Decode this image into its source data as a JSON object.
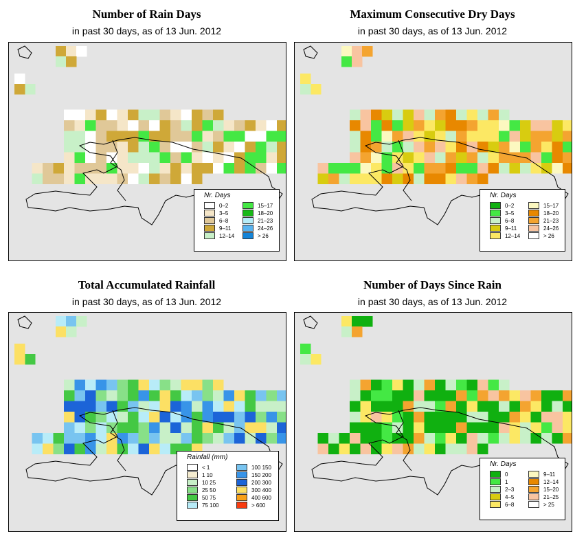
{
  "panels": [
    {
      "id": "rain-days",
      "title": "Number of Rain Days",
      "subtitle": "in past 30 days, as of  13 Jun. 2012",
      "legend_title": "Nr. Days",
      "legend": [
        {
          "label": "0–2",
          "color": "#ffffff"
        },
        {
          "label": "3–5",
          "color": "#f5e6c8"
        },
        {
          "label": "6–8",
          "color": "#e0c898"
        },
        {
          "label": "9–11",
          "color": "#cfa838"
        },
        {
          "label": "12–14",
          "color": "#c8f0c8"
        },
        {
          "label": "15–17",
          "color": "#44e844"
        },
        {
          "label": "18–20",
          "color": "#18b818"
        },
        {
          "label": "21–23",
          "color": "#b4ecf8"
        },
        {
          "label": "24–26",
          "color": "#58b4f0"
        },
        {
          "label": "> 26",
          "color": "#1484d8"
        }
      ]
    },
    {
      "id": "dry-days",
      "title": "Maximum Consecutive Dry Days",
      "subtitle": "in past 30 days, as of  13 Jun. 2012",
      "legend_title": "Nr. Days",
      "legend": [
        {
          "label": "0–2",
          "color": "#10b010"
        },
        {
          "label": "3–5",
          "color": "#44e844"
        },
        {
          "label": "6–8",
          "color": "#c8f0c8"
        },
        {
          "label": "9–11",
          "color": "#d8cc10"
        },
        {
          "label": "12–14",
          "color": "#fce864"
        },
        {
          "label": "15–17",
          "color": "#fcf8c0"
        },
        {
          "label": "18–20",
          "color": "#e88800"
        },
        {
          "label": "21–23",
          "color": "#f4a430"
        },
        {
          "label": "24–26",
          "color": "#f8c4a0"
        },
        {
          "label": "> 26",
          "color": "#ffffff"
        }
      ]
    },
    {
      "id": "rainfall",
      "title": "Total Accumulated Rainfall",
      "subtitle": "in past 30 days, as of  13 Jun. 2012",
      "legend_title": "Rainfall (mm)",
      "legend": [
        {
          "label": "< 1",
          "color": "#ffffff"
        },
        {
          "label": "1   10",
          "color": "#f5ecd0"
        },
        {
          "label": "10   25",
          "color": "#c8f0c8"
        },
        {
          "label": "25   50",
          "color": "#88e088"
        },
        {
          "label": "50   75",
          "color": "#44c844"
        },
        {
          "label": "75   100",
          "color": "#b8ecf8"
        },
        {
          "label": "100  150",
          "color": "#78c4f0"
        },
        {
          "label": "150  200",
          "color": "#3894e8"
        },
        {
          "label": "200  300",
          "color": "#1c64d8"
        },
        {
          "label": "300  400",
          "color": "#fce064"
        },
        {
          "label": "400  600",
          "color": "#f8a018"
        },
        {
          "label": "> 600",
          "color": "#f83c10"
        }
      ]
    },
    {
      "id": "since-rain",
      "title": "Number of Days Since Rain",
      "subtitle": "in past 30 days, as of  13 Jun. 2012",
      "legend_title": "Nr. Days",
      "legend": [
        {
          "label": "0",
          "color": "#10b010"
        },
        {
          "label": "1",
          "color": "#44e844"
        },
        {
          "label": "2–3",
          "color": "#c8f0c8"
        },
        {
          "label": "4–5",
          "color": "#d8cc10"
        },
        {
          "label": "6–8",
          "color": "#fce864"
        },
        {
          "label": "9–11",
          "color": "#fcf8c0"
        },
        {
          "label": "12–14",
          "color": "#e88800"
        },
        {
          "label": "15–20",
          "color": "#f4a430"
        },
        {
          "label": "21–25",
          "color": "#f8c4a0"
        },
        {
          "label": "> 25",
          "color": "#ffffff"
        }
      ]
    }
  ]
}
